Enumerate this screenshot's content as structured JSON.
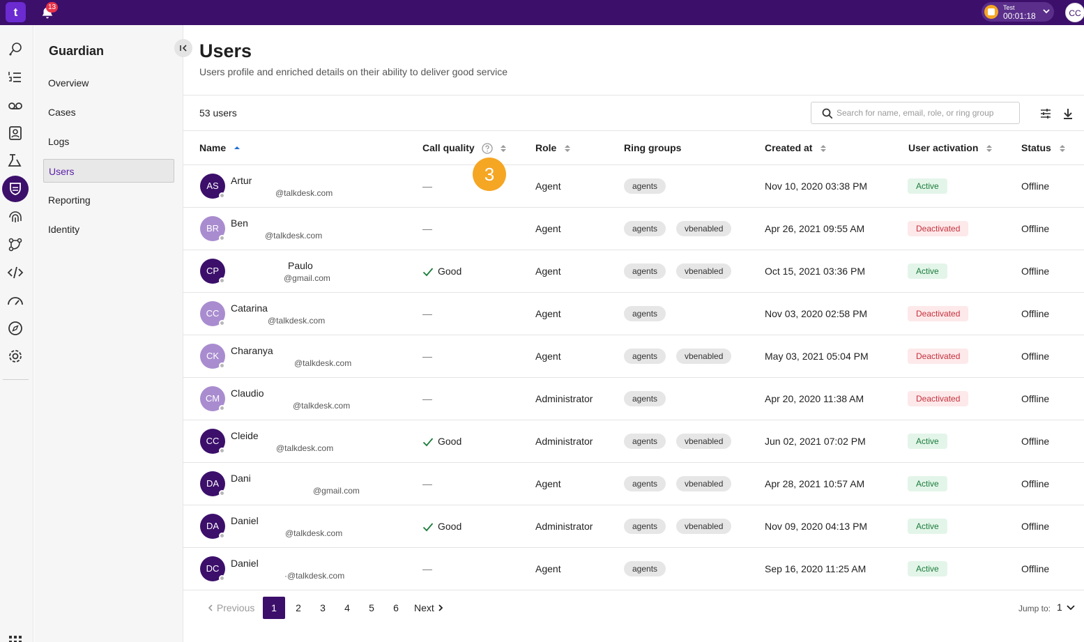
{
  "topbar": {
    "logo": "t",
    "notifications": "13",
    "timer_label": "Test",
    "timer_value": "00:01:18",
    "user_initials": "CC"
  },
  "sidebar": {
    "title": "Guardian",
    "items": [
      {
        "label": "Overview"
      },
      {
        "label": "Cases"
      },
      {
        "label": "Logs"
      },
      {
        "label": "Users"
      },
      {
        "label": "Reporting"
      },
      {
        "label": "Identity"
      }
    ]
  },
  "page": {
    "title": "Users",
    "subtitle": "Users profile and enriched details on their ability to deliver good service",
    "count": "53 users",
    "search_placeholder": "Search for name, email, role, or ring group"
  },
  "table": {
    "headers": {
      "name": "Name",
      "call_quality": "Call quality",
      "role": "Role",
      "ring_groups": "Ring groups",
      "created_at": "Created at",
      "user_activation": "User activation",
      "status": "Status"
    },
    "rows": [
      {
        "initials": "AS",
        "name": "Artur",
        "email": "@talkdesk.com",
        "call_quality": "—",
        "role": "Agent",
        "groups": [
          "agents"
        ],
        "created": "Nov 10, 2020 03:38 PM",
        "activation": "Active",
        "status": "Offline"
      },
      {
        "initials": "BR",
        "name": "Ben",
        "email": "@talkdesk.com",
        "call_quality": "—",
        "role": "Agent",
        "groups": [
          "agents",
          "vbenabled"
        ],
        "created": "Apr 26, 2021 09:55 AM",
        "activation": "Deactivated",
        "status": "Offline"
      },
      {
        "initials": "CP",
        "name": "Paulo",
        "email": "@gmail.com",
        "call_quality": "Good",
        "role": "Agent",
        "groups": [
          "agents",
          "vbenabled"
        ],
        "created": "Oct 15, 2021 03:36 PM",
        "activation": "Active",
        "status": "Offline"
      },
      {
        "initials": "CC",
        "name": "Catarina",
        "email": "@talkdesk.com",
        "call_quality": "—",
        "role": "Agent",
        "groups": [
          "agents"
        ],
        "created": "Nov 03, 2020 02:58 PM",
        "activation": "Deactivated",
        "status": "Offline"
      },
      {
        "initials": "CK",
        "name": "Charanya",
        "email": "@talkdesk.com",
        "call_quality": "—",
        "role": "Agent",
        "groups": [
          "agents",
          "vbenabled"
        ],
        "created": "May 03, 2021 05:04 PM",
        "activation": "Deactivated",
        "status": "Offline"
      },
      {
        "initials": "CM",
        "name": "Claudio",
        "email": "@talkdesk.com",
        "call_quality": "—",
        "role": "Administrator",
        "groups": [
          "agents"
        ],
        "created": "Apr 20, 2020 11:38 AM",
        "activation": "Deactivated",
        "status": "Offline"
      },
      {
        "initials": "CC",
        "name": "Cleide",
        "email": "@talkdesk.com",
        "call_quality": "Good",
        "role": "Administrator",
        "groups": [
          "agents",
          "vbenabled"
        ],
        "created": "Jun 02, 2021 07:02 PM",
        "activation": "Active",
        "status": "Offline"
      },
      {
        "initials": "DA",
        "name": "Dani",
        "email": "@gmail.com",
        "call_quality": "—",
        "role": "Agent",
        "groups": [
          "agents",
          "vbenabled"
        ],
        "created": "Apr 28, 2021 10:57 AM",
        "activation": "Active",
        "status": "Offline"
      },
      {
        "initials": "DA",
        "name": "Daniel",
        "email": "@talkdesk.com",
        "call_quality": "Good",
        "role": "Administrator",
        "groups": [
          "agents",
          "vbenabled"
        ],
        "created": "Nov 09, 2020 04:13 PM",
        "activation": "Active",
        "status": "Offline"
      },
      {
        "initials": "DC",
        "name": "Daniel",
        "email": "·@talkdesk.com",
        "call_quality": "—",
        "role": "Agent",
        "groups": [
          "agents"
        ],
        "created": "Sep 16, 2020 11:25 AM",
        "activation": "Active",
        "status": "Offline"
      }
    ]
  },
  "step_marker": "3",
  "pagination": {
    "previous": "Previous",
    "pages": [
      "1",
      "2",
      "3",
      "4",
      "5",
      "6"
    ],
    "current": "1",
    "next": "Next",
    "jump_label": "Jump to:",
    "jump_value": "1"
  },
  "colors": {
    "brand": "#3c0f6b",
    "avatar_dark": "#3c0f6b",
    "avatar_light": "#a98ccf",
    "active": "#1a7b3a",
    "deactivated": "#c4303c"
  }
}
